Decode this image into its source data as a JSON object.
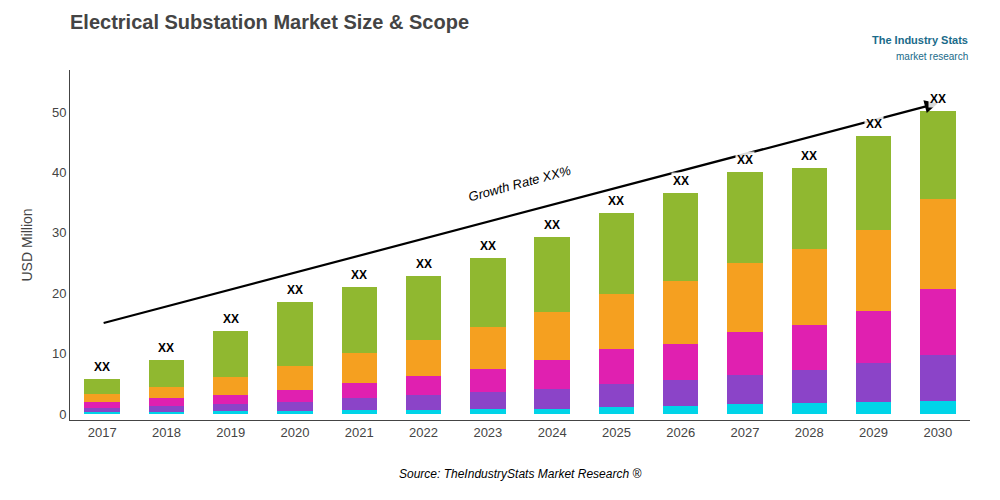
{
  "chart_data": {
    "type": "bar",
    "stacked": true,
    "title": "Electrical Substation Market Size & Scope",
    "ylabel": "USD Million",
    "source": "Source: TheIndustryStats Market Research ®",
    "watermark": {
      "text": [
        "The Industry Stats",
        "market research"
      ],
      "color": "#1a6b8a"
    },
    "categories": [
      "2017",
      "2018",
      "2019",
      "2020",
      "2021",
      "2022",
      "2023",
      "2024",
      "2025",
      "2026",
      "2027",
      "2028",
      "2029",
      "2030"
    ],
    "series": [
      {
        "color": "#00d4e8",
        "values": [
          0.3,
          0.4,
          0.5,
          0.5,
          0.6,
          0.7,
          0.8,
          0.9,
          1.2,
          1.4,
          1.6,
          1.8,
          2.0,
          2.2
        ]
      },
      {
        "color": "#8b44c8",
        "values": [
          0.7,
          1.0,
          1.2,
          1.5,
          2.0,
          2.4,
          2.8,
          3.2,
          3.8,
          4.2,
          4.8,
          5.5,
          6.5,
          7.5
        ]
      },
      {
        "color": "#e020b0",
        "values": [
          1.0,
          1.3,
          1.5,
          2.0,
          2.5,
          3.2,
          3.8,
          4.8,
          5.8,
          6.0,
          7.2,
          7.5,
          8.5,
          11.0
        ]
      },
      {
        "color": "#f5a020",
        "values": [
          1.3,
          1.8,
          3.0,
          4.0,
          5.0,
          6.0,
          7.0,
          8.0,
          9.0,
          10.5,
          11.5,
          12.5,
          13.5,
          15.0
        ]
      },
      {
        "color": "#90b830",
        "values": [
          2.5,
          4.5,
          7.5,
          10.5,
          11.0,
          10.5,
          11.5,
          12.5,
          13.5,
          14.5,
          15.0,
          13.5,
          15.5,
          14.5
        ]
      }
    ],
    "bar_labels": [
      {
        "x": "2017",
        "y": 5.8,
        "text": "XX"
      },
      {
        "x": "2018",
        "y": 9.0,
        "text": "XX"
      },
      {
        "x": "2019",
        "y": 13.7,
        "text": "XX"
      },
      {
        "x": "2020",
        "y": 18.5,
        "text": "XX"
      },
      {
        "x": "2021",
        "y": 21.1,
        "text": "XX"
      },
      {
        "x": "2022",
        "y": 22.8,
        "text": "XX"
      },
      {
        "x": "2023",
        "y": 25.9,
        "text": "XX"
      },
      {
        "x": "2024",
        "y": 29.4,
        "text": "XX"
      },
      {
        "x": "2025",
        "y": 33.3,
        "text": "XX"
      },
      {
        "x": "2026",
        "y": 36.6,
        "text": "XX"
      },
      {
        "x": "2027",
        "y": 40.1,
        "text": "XX"
      },
      {
        "x": "2028",
        "y": 40.8,
        "text": "XX"
      },
      {
        "x": "2029",
        "y": 46.0,
        "text": "XX"
      },
      {
        "x": "2030",
        "y": 50.2,
        "text": "XX"
      }
    ],
    "arrow": {
      "from": {
        "x": "2017",
        "y": 15.0
      },
      "to": {
        "x": "2030",
        "y": 51.5
      },
      "text": "Growth Rate XX%"
    },
    "ylim": [
      -1,
      57
    ],
    "yticks": [
      0,
      10,
      20,
      30,
      40,
      50
    ],
    "grid": false
  }
}
